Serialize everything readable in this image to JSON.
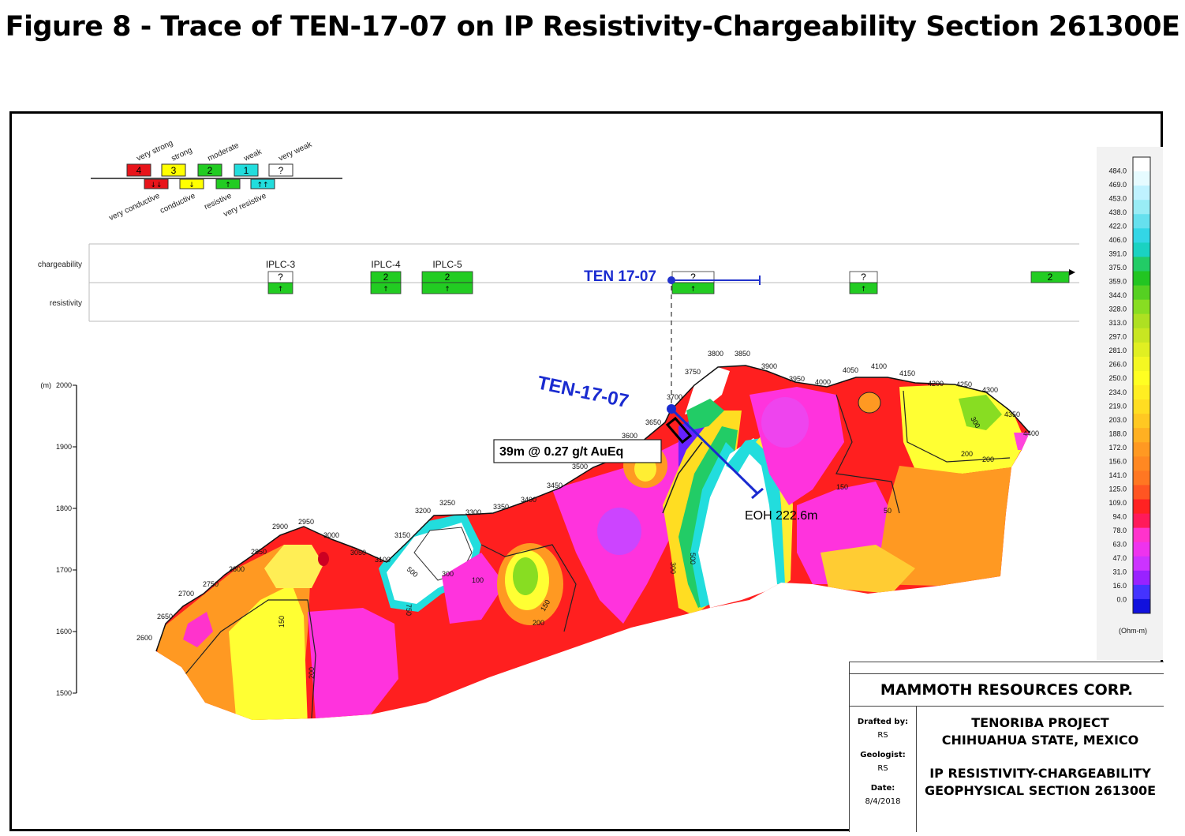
{
  "figure_title": "Figure 8 - Trace of TEN-17-07 on IP Resistivity-Chargeability Section 261300E",
  "legend": {
    "chargeability": [
      {
        "value": "4",
        "label": "very strong",
        "color": "#e8141a"
      },
      {
        "value": "3",
        "label": "strong",
        "color": "#ffff00"
      },
      {
        "value": "2",
        "label": "moderate",
        "color": "#22cc22"
      },
      {
        "value": "1",
        "label": "weak",
        "color": "#22dddd"
      },
      {
        "value": "?",
        "label": "very weak",
        "color": "#ffffff"
      }
    ],
    "resistivity": [
      {
        "arrow": "↓↓",
        "label": "very conductive",
        "color": "#e8141a"
      },
      {
        "arrow": "↓",
        "label": "conductive",
        "color": "#ffff00"
      },
      {
        "arrow": "↑",
        "label": "resistive",
        "color": "#22cc22"
      },
      {
        "arrow": "↑↑",
        "label": "very resistive",
        "color": "#22dddd"
      }
    ]
  },
  "strip": {
    "row_chargeability": "chargeability",
    "row_resistivity": "resistivity",
    "anomalies": [
      {
        "name": "IPLC-3",
        "charge": "?",
        "charge_color": "#ffffff",
        "res": "↑",
        "res_color": "#22cc22"
      },
      {
        "name": "IPLC-4",
        "charge": "2",
        "charge_color": "#22cc22",
        "res": "↑",
        "res_color": "#22cc22"
      },
      {
        "name": "IPLC-5",
        "charge": "2",
        "charge_color": "#22cc22",
        "res": "↑",
        "res_color": "#22cc22"
      },
      {
        "name": "",
        "charge": "?",
        "charge_color": "#ffffff",
        "res": "↑",
        "res_color": "#22cc22"
      },
      {
        "name": "",
        "charge": "?",
        "charge_color": "#ffffff",
        "res": "↑",
        "res_color": "#22cc22"
      },
      {
        "name": "",
        "charge": "2",
        "charge_color": "#22cc22",
        "res": "",
        "res_color": "#ffffff"
      }
    ],
    "hole_label": "TEN 17-07"
  },
  "section": {
    "hole_label": "TEN-17-07",
    "intercept": "39m @ 0.27 g/t AuEq",
    "eoh": "EOH 222.6m",
    "elevation_unit": "(m)",
    "elevation_ticks": [
      "2000",
      "1900",
      "1800",
      "1700",
      "1600",
      "1500"
    ],
    "station_labels": [
      "2600",
      "2650",
      "2700",
      "2750",
      "2800",
      "2850",
      "2900",
      "2950",
      "3000",
      "3050",
      "3100",
      "3150",
      "3200",
      "3250",
      "3300",
      "3350",
      "3400",
      "3450",
      "3500",
      "3550",
      "3600",
      "3650",
      "3700",
      "3750",
      "3800",
      "3850",
      "3900",
      "3950",
      "4000",
      "4050",
      "4100",
      "4150",
      "4200",
      "4250",
      "4300",
      "4350",
      "4400"
    ],
    "contour_labels": [
      "150",
      "200",
      "500",
      "750",
      "300",
      "100",
      "150",
      "200",
      "50",
      "200",
      "300",
      "500",
      "300",
      "150",
      "200"
    ]
  },
  "colorbar": {
    "unit": "(Ohm-m)",
    "ticks": [
      "484.0",
      "469.0",
      "453.0",
      "438.0",
      "422.0",
      "406.0",
      "391.0",
      "375.0",
      "359.0",
      "344.0",
      "328.0",
      "313.0",
      "297.0",
      "281.0",
      "266.0",
      "250.0",
      "234.0",
      "219.0",
      "203.0",
      "188.0",
      "172.0",
      "156.0",
      "141.0",
      "125.0",
      "109.0",
      "94.0",
      "78.0",
      "63.0",
      "47.0",
      "31.0",
      "16.0",
      "0.0"
    ],
    "colors": [
      "#ffffff",
      "#e6fbff",
      "#bff2ff",
      "#99ecf5",
      "#66e0ee",
      "#33d6e6",
      "#1ad2c2",
      "#22cc66",
      "#22c522",
      "#55d022",
      "#88dd22",
      "#aee022",
      "#c8e622",
      "#e0ef22",
      "#f4f722",
      "#ffff22",
      "#ffee22",
      "#ffdd22",
      "#ffc822",
      "#ffb022",
      "#ff9922",
      "#ff8822",
      "#ff7722",
      "#ff5522",
      "#ff2222",
      "#ff1a5a",
      "#ff33cc",
      "#ee33ee",
      "#cc33ff",
      "#9922ff",
      "#4433ff",
      "#1111dd"
    ]
  },
  "title_block": {
    "company": "MAMMOTH RESOURCES CORP.",
    "drafted_label": "Drafted by:",
    "drafted_value": "RS",
    "geologist_label": "Geologist:",
    "geologist_value": "RS",
    "date_label": "Date:",
    "date_value": "8/4/2018",
    "project_line1": "TENORIBA PROJECT",
    "project_line2": "CHIHUAHUA STATE, MEXICO",
    "section_line1": "IP RESISTIVITY-CHARGEABILITY",
    "section_line2": "GEOPHYSICAL SECTION 261300E"
  }
}
